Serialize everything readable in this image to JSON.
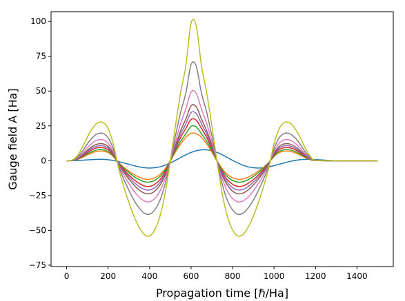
{
  "chart_data": {
    "type": "line",
    "title": "",
    "xlabel": "Propagation time [ℏ/Ha]",
    "ylabel": "Gauge field A [Ha]",
    "xlim": [
      -75,
      1575
    ],
    "ylim": [
      -76,
      107
    ],
    "xticks": [
      0,
      200,
      400,
      600,
      800,
      1000,
      1200,
      1400
    ],
    "yticks": [
      -75,
      -50,
      -25,
      0,
      25,
      50,
      75,
      100
    ],
    "grid": false,
    "legend": "none",
    "x": [
      0,
      25,
      50,
      75,
      100,
      125,
      150,
      175,
      200,
      225,
      250,
      275,
      300,
      325,
      350,
      375,
      400,
      425,
      450,
      475,
      500,
      525,
      550,
      575,
      600,
      625,
      650,
      675,
      700,
      725,
      750,
      775,
      800,
      825,
      850,
      875,
      900,
      925,
      950,
      975,
      1000,
      1025,
      1050,
      1075,
      1100,
      1125,
      1150,
      1175,
      1200,
      1300,
      1400,
      1500
    ],
    "series": [
      {
        "color": "#1f77b4",
        "values": [
          0,
          0.01,
          0.11,
          0.33,
          0.59,
          0.84,
          0.98,
          0.96,
          0.7,
          0.17,
          -0.61,
          -1.55,
          -2.56,
          -3.55,
          -4.41,
          -5.01,
          -5.25,
          -5.05,
          -4.37,
          -3.2,
          -1.62,
          0.27,
          2.3,
          4.26,
          5.94,
          7.16,
          7.8,
          7.83,
          7.16,
          5.94,
          4.26,
          2.3,
          0.27,
          -1.62,
          -3.2,
          -4.37,
          -5.05,
          -5.25,
          -5.01,
          -4.41,
          -3.55,
          -2.56,
          -1.55,
          -0.61,
          0.17,
          0.7,
          0.96,
          0.98,
          0.84,
          0,
          0,
          0
        ]
      },
      {
        "color": "#ff7f0e",
        "values": [
          0,
          0.1,
          0.8,
          2.3,
          4.2,
          5.8,
          6.8,
          6.9,
          5.8,
          3.0,
          -1.2,
          -4.6,
          -7.4,
          -9.9,
          -11.8,
          -13.1,
          -13.3,
          -12.3,
          -9.9,
          -5.8,
          -0.1,
          6.3,
          12.1,
          16.8,
          19.7,
          19.4,
          16.8,
          12.1,
          6.3,
          -0.1,
          -5.8,
          -9.9,
          -12.3,
          -13.3,
          -13.1,
          -11.8,
          -9.9,
          -7.4,
          -4.6,
          -1.2,
          3.0,
          5.8,
          6.9,
          6.8,
          5.8,
          4.2,
          2.3,
          0.8,
          0.1,
          0,
          0,
          0
        ]
      },
      {
        "color": "#2ca02c",
        "values": [
          0,
          0.12,
          0.9,
          2.7,
          4.9,
          6.7,
          7.8,
          7.9,
          6.6,
          3.4,
          -1.4,
          -5.3,
          -8.5,
          -11.4,
          -13.6,
          -15.1,
          -15.3,
          -14.1,
          -11.4,
          -6.7,
          -0.1,
          7.3,
          14.0,
          19.4,
          24.7,
          24.3,
          19.4,
          14.0,
          7.3,
          -0.1,
          -6.7,
          -11.4,
          -14.1,
          -15.3,
          -15.1,
          -13.6,
          -11.4,
          -8.5,
          -5.3,
          -1.4,
          3.4,
          6.6,
          7.9,
          7.8,
          6.7,
          4.9,
          2.7,
          0.9,
          0.12,
          0,
          0,
          0
        ]
      },
      {
        "color": "#d62728",
        "values": [
          0,
          0.14,
          1.1,
          3.2,
          5.8,
          8.0,
          9.3,
          9.4,
          7.9,
          4.1,
          -1.7,
          -6.3,
          -10.2,
          -13.6,
          -16.3,
          -18.1,
          -18.4,
          -16.9,
          -13.6,
          -8.0,
          -0.1,
          8.7,
          16.8,
          23.3,
          29.6,
          29.1,
          23.3,
          16.8,
          8.7,
          -0.1,
          -8.0,
          -13.6,
          -16.9,
          -18.4,
          -18.1,
          -16.3,
          -13.6,
          -10.2,
          -6.3,
          -1.7,
          4.1,
          7.9,
          9.4,
          9.3,
          8.0,
          5.8,
          3.2,
          1.1,
          0.14,
          0,
          0,
          0
        ]
      },
      {
        "color": "#9467bd",
        "values": [
          0,
          0.16,
          1.25,
          3.6,
          6.6,
          9.1,
          10.6,
          10.7,
          9.0,
          4.7,
          -1.9,
          -7.2,
          -11.6,
          -15.5,
          -18.6,
          -20.6,
          -21.0,
          -19.3,
          -15.5,
          -9.1,
          -0.1,
          9.9,
          19.1,
          26.5,
          34.5,
          33.9,
          26.5,
          19.1,
          9.9,
          -0.1,
          -9.1,
          -15.5,
          -19.3,
          -21.0,
          -20.6,
          -18.6,
          -15.5,
          -11.6,
          -7.2,
          -1.9,
          4.7,
          9.0,
          10.7,
          10.6,
          9.1,
          6.6,
          3.6,
          1.25,
          0.16,
          0,
          0,
          0
        ]
      },
      {
        "color": "#8c564b",
        "values": [
          0,
          0.18,
          1.4,
          4.1,
          7.5,
          10.3,
          12.0,
          12.1,
          10.2,
          5.3,
          -2.2,
          -8.1,
          -13.1,
          -17.5,
          -21.0,
          -23.3,
          -23.7,
          -21.8,
          -17.5,
          -10.3,
          -0.1,
          11.2,
          21.6,
          30.0,
          39.4,
          38.8,
          30.0,
          21.6,
          11.2,
          -0.1,
          -10.3,
          -17.5,
          -21.8,
          -23.7,
          -23.3,
          -21.0,
          -17.5,
          -13.1,
          -8.1,
          -2.2,
          5.3,
          10.2,
          12.1,
          12.0,
          10.3,
          7.5,
          4.1,
          1.4,
          0.18,
          0,
          0,
          0
        ]
      },
      {
        "color": "#e377c2",
        "values": [
          0,
          0.22,
          1.75,
          5.1,
          9.3,
          12.8,
          14.9,
          15.0,
          12.6,
          6.6,
          -2.7,
          -10.1,
          -16.3,
          -21.8,
          -26.1,
          -29.0,
          -29.5,
          -27.1,
          -21.8,
          -12.8,
          -0.2,
          13.9,
          26.9,
          37.3,
          49.3,
          48.5,
          37.3,
          26.9,
          13.9,
          -0.2,
          -12.8,
          -21.8,
          -27.1,
          -29.5,
          -29.0,
          -26.1,
          -21.8,
          -16.3,
          -10.1,
          -2.7,
          6.6,
          12.6,
          15.0,
          14.9,
          12.8,
          9.3,
          5.1,
          1.75,
          0.22,
          0,
          0,
          0
        ]
      },
      {
        "color": "#7f7f7f",
        "values": [
          0,
          0.3,
          2.3,
          6.6,
          12.1,
          16.7,
          19.4,
          19.6,
          16.5,
          8.6,
          -3.5,
          -13.1,
          -21.2,
          -28.4,
          -34.0,
          -37.7,
          -38.4,
          -35.3,
          -28.4,
          -16.7,
          -0.2,
          18.1,
          35.0,
          48.6,
          69.0,
          67.9,
          48.6,
          35.0,
          18.1,
          -0.2,
          -16.7,
          -28.4,
          -35.3,
          -38.4,
          -37.7,
          -34.0,
          -28.4,
          -21.2,
          -13.1,
          -3.5,
          8.6,
          16.5,
          19.6,
          19.4,
          16.7,
          12.1,
          6.6,
          2.3,
          0.3,
          0,
          0,
          0
        ]
      },
      {
        "color": "#bcbd22",
        "values": [
          0,
          0.4,
          3.2,
          9.3,
          17.0,
          23.4,
          27.2,
          27.5,
          23.1,
          12.1,
          -4.9,
          -18.4,
          -29.8,
          -39.9,
          -47.8,
          -53.0,
          -54.0,
          -49.6,
          -39.9,
          -23.4,
          -0.3,
          25.4,
          49.2,
          68.3,
          98.6,
          97.0,
          68.3,
          49.2,
          25.4,
          -0.3,
          -23.4,
          -39.9,
          -49.6,
          -54.0,
          -53.0,
          -47.8,
          -39.9,
          -29.8,
          -18.4,
          -4.9,
          12.1,
          23.1,
          27.5,
          27.2,
          23.4,
          17.0,
          9.3,
          3.2,
          0.4,
          0,
          0,
          0
        ]
      }
    ]
  }
}
